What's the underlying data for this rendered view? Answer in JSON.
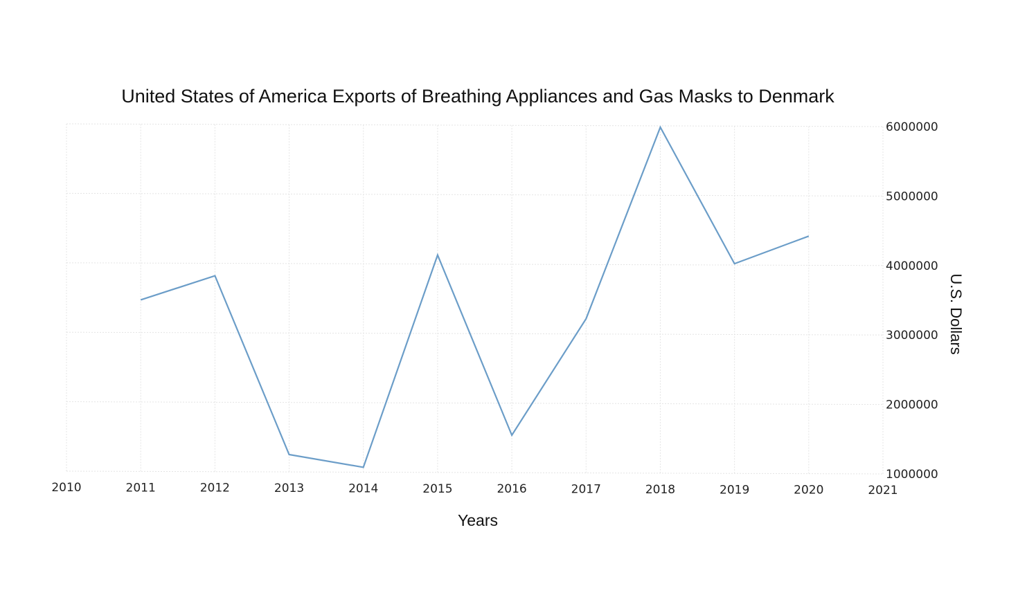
{
  "chart_data": {
    "type": "line",
    "title": "United States of America Exports of Breathing Appliances and Gas Masks to Denmark",
    "xlabel": "Years",
    "ylabel": "U.S. Dollars",
    "x_ticks": [
      "2010",
      "2011",
      "2012",
      "2013",
      "2014",
      "2015",
      "2016",
      "2017",
      "2018",
      "2019",
      "2020",
      "2021"
    ],
    "y_ticks": [
      "1000000",
      "2000000",
      "3000000",
      "4000000",
      "5000000",
      "6000000"
    ],
    "xlim": [
      2010,
      2021
    ],
    "ylim": [
      1000000,
      6000000
    ],
    "y_axis_side": "right",
    "grid": true,
    "legend": false,
    "line_color": "#6b9dc8",
    "series": [
      {
        "x": [
          2011,
          2012,
          2013,
          2014,
          2015,
          2016,
          2017,
          2018,
          2019,
          2020
        ],
        "values": [
          3470000,
          3820000,
          1250000,
          1070000,
          4130000,
          1540000,
          3220000,
          5980000,
          4020000,
          4420000
        ]
      }
    ]
  }
}
